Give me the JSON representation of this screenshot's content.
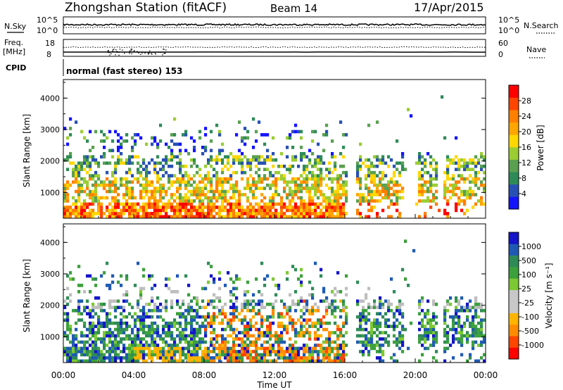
{
  "header": {
    "station": "Zhongshan Station (fitACF)",
    "beam": "Beam 14",
    "date": "17/Apr/2015"
  },
  "top_panels": {
    "nsky_label": "N.Sky",
    "nsearch_label": "N.Search",
    "nsky_ticks": [
      "10^5",
      "10^0"
    ],
    "nsearch_ticks": [
      "10^5",
      "10^0"
    ],
    "freq_label_1": "Freq.",
    "freq_label_2": "[MHz]",
    "freq_ticks": [
      "18",
      "8"
    ],
    "nave_label": "Nave",
    "nave_ticks": [
      "60",
      "0"
    ],
    "cpid_label": "CPID",
    "cpid_text": "normal (fast stereo) 153"
  },
  "colors": {
    "power_scale": [
      "#1414ff",
      "#2850b4",
      "#2e8b57",
      "#5aa050",
      "#9bcd32",
      "#ffd700",
      "#ffa500",
      "#ff7f00",
      "#ff4500",
      "#ff0000"
    ],
    "velocity_scale": [
      "#ff0000",
      "#ff4500",
      "#ff8c00",
      "#ffb400",
      "#c8c8c8",
      "#c8c8c8",
      "#7cc832",
      "#3ca03c",
      "#2e8b57",
      "#1e5ab4",
      "#1414c8"
    ],
    "ground_scatter": "#bebebe"
  },
  "chart_data": [
    {
      "type": "heatmap",
      "name": "power",
      "ylabel": "Slant Range [km]",
      "yticks": [
        "4000",
        "3000",
        "2000",
        "1000"
      ],
      "ylim": [
        180,
        4590
      ],
      "colorbar_label": "Power [dB]",
      "colorbar_ticks": [
        "28",
        "24",
        "20",
        "16",
        "12",
        "8",
        "4"
      ],
      "colorbar_range": [
        0,
        30
      ]
    },
    {
      "type": "heatmap",
      "name": "velocity",
      "ylabel": "Slant Range [km]",
      "yticks": [
        "4000",
        "3000",
        "2000",
        "1000"
      ],
      "ylim": [
        180,
        4590
      ],
      "colorbar_label": "Velocity [m s⁻¹]",
      "colorbar_ticks": [
        "1000",
        "500",
        "100",
        "25",
        "-25",
        "-100",
        "-500",
        "-1000"
      ]
    }
  ],
  "xaxis": {
    "label": "Time UT",
    "ticks": [
      "00:00",
      "04:00",
      "08:00",
      "12:00",
      "16:00",
      "20:00",
      "00:00"
    ],
    "range_hours": [
      0,
      24
    ]
  }
}
